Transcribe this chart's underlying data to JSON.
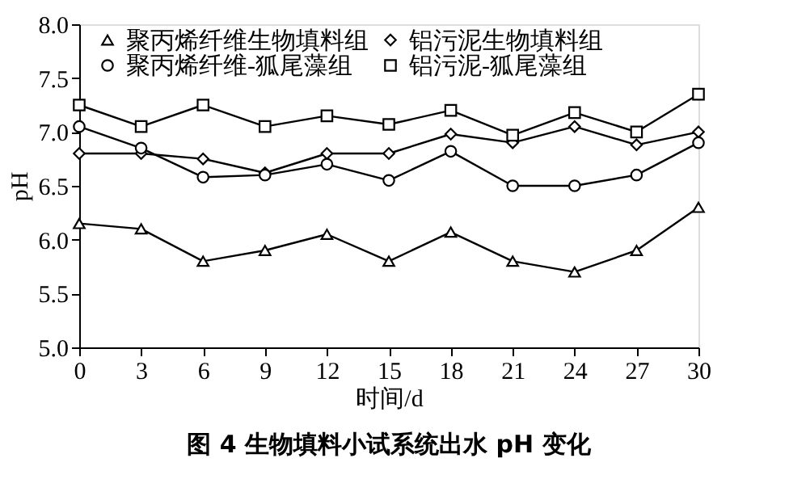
{
  "chart_data": {
    "type": "line",
    "title": "图 4   生物填料小试系统出水 pH 变化",
    "xlabel": "时间/d",
    "ylabel": "pH",
    "x": [
      0,
      3,
      6,
      9,
      12,
      15,
      18,
      21,
      24,
      27,
      30
    ],
    "series": [
      {
        "name": "聚丙烯纤维生物填料组",
        "color": "#000000",
        "marker": "triangle",
        "values": [
          6.15,
          6.1,
          5.8,
          5.9,
          6.05,
          5.8,
          6.07,
          5.8,
          5.7,
          5.9,
          6.3
        ]
      },
      {
        "name": "铝污泥生物填料组",
        "color": "#000000",
        "marker": "diamond",
        "values": [
          6.8,
          6.8,
          6.75,
          6.62,
          6.8,
          6.8,
          6.98,
          6.9,
          7.05,
          6.88,
          7.0
        ]
      },
      {
        "name": "聚丙烯纤维-狐尾藻组",
        "color": "#000000",
        "marker": "circle",
        "values": [
          7.05,
          6.85,
          6.58,
          6.6,
          6.7,
          6.55,
          6.82,
          6.5,
          6.5,
          6.6,
          6.9
        ]
      },
      {
        "name": "铝污泥-狐尾藻组",
        "color": "#000000",
        "marker": "square",
        "values": [
          7.25,
          7.05,
          7.25,
          7.05,
          7.15,
          7.07,
          7.2,
          6.97,
          7.18,
          7.0,
          7.35
        ]
      }
    ],
    "xlim": [
      0,
      30
    ],
    "xticks": [
      0,
      3,
      6,
      9,
      12,
      15,
      18,
      21,
      24,
      27,
      30
    ],
    "ylim": [
      5.0,
      8.0
    ],
    "yticks": [
      {
        "value": 5.0,
        "label": "5.0"
      },
      {
        "value": 5.5,
        "label": "5.5"
      },
      {
        "value": 6.0,
        "label": "6.0"
      },
      {
        "value": 6.5,
        "label": "6.5"
      },
      {
        "value": 7.0,
        "label": "7.0"
      },
      {
        "value": 7.5,
        "label": "7.5"
      },
      {
        "value": 8.0,
        "label": "8.0"
      }
    ],
    "grid": false,
    "legend": "top",
    "line_style": "solid"
  }
}
